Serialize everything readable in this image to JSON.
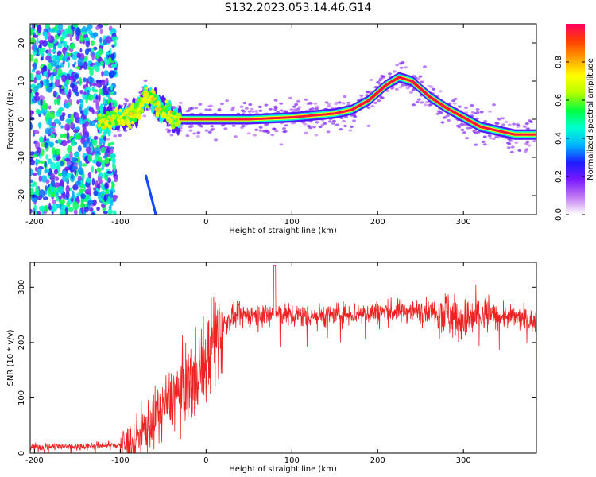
{
  "figure_title": "S132.2023.053.14.46.G14",
  "chart_data": [
    {
      "type": "heatmap",
      "title": "",
      "xlabel": "Height of straight line (km)",
      "ylabel": "Frequency (Hz)",
      "xlim": [
        -205,
        385
      ],
      "ylim": [
        -25,
        25
      ],
      "xticks": [
        -200,
        -100,
        0,
        100,
        200,
        300
      ],
      "yticks": [
        -20,
        -10,
        0,
        10,
        20
      ],
      "colorbar": {
        "label": "Normalized spectral amplitude",
        "range": [
          0.0,
          1.0
        ],
        "ticks": [
          "0.0",
          "0.2",
          "0.4",
          "0.6",
          "0.8"
        ],
        "colormap": [
          "#ffffff",
          "#c27cf0",
          "#7a1aff",
          "#1c1cff",
          "#00b4ff",
          "#00ffd0",
          "#00ff40",
          "#b4ff00",
          "#ffff00",
          "#ffa000",
          "#ff4000",
          "#ff0060"
        ]
      },
      "ridge": {
        "x": [
          -120,
          -100,
          -80,
          -70,
          -60,
          -50,
          -40,
          -30,
          0,
          50,
          100,
          150,
          170,
          190,
          210,
          225,
          240,
          260,
          280,
          300,
          320,
          340,
          360,
          385
        ],
        "frequency_hz": [
          0,
          0,
          2,
          6,
          5,
          2,
          0.5,
          0,
          0,
          0,
          0.5,
          1.5,
          2.5,
          5,
          9,
          11,
          10,
          6,
          3,
          0.5,
          -2,
          -3,
          -4,
          -4
        ]
      }
    },
    {
      "type": "line",
      "title": "",
      "xlabel": "Height of straight line (km)",
      "ylabel": "SNR (10 * v/v)",
      "xlim": [
        -205,
        385
      ],
      "ylim": [
        0,
        345
      ],
      "xticks": [
        -200,
        -100,
        0,
        100,
        200,
        300
      ],
      "yticks": [
        0,
        100,
        200,
        300
      ],
      "color": "#ee2222",
      "series": [
        {
          "x": [
            -205,
            -180,
            -150,
            -120,
            -100,
            -90,
            -80,
            -70,
            -60,
            -50,
            -40,
            -30,
            -20,
            -10,
            0,
            10,
            20,
            30,
            40,
            60,
            80,
            100,
            150,
            200,
            250,
            280,
            300,
            320,
            340,
            360,
            385
          ],
          "values": [
            10,
            12,
            12,
            14,
            15,
            18,
            28,
            45,
            62,
            85,
            100,
            115,
            125,
            150,
            165,
            210,
            230,
            245,
            248,
            250,
            252,
            248,
            250,
            255,
            258,
            255,
            240,
            250,
            248,
            245,
            238
          ]
        }
      ]
    }
  ]
}
